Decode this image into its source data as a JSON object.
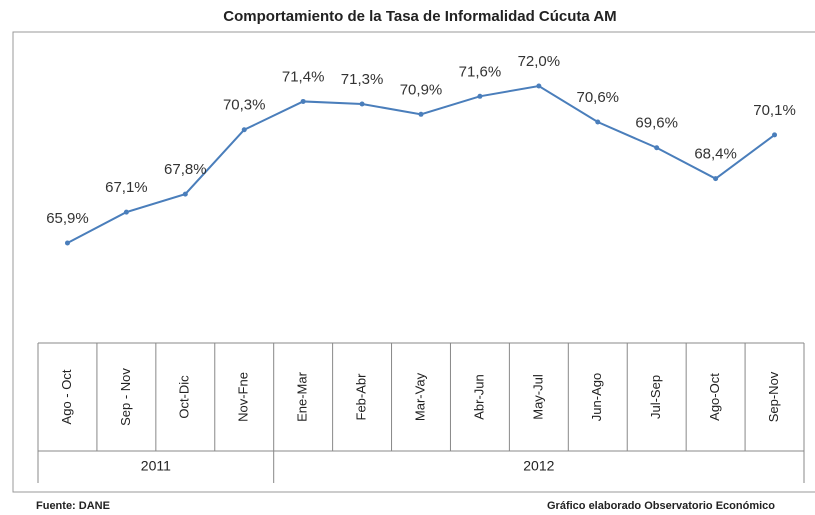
{
  "chart_data": {
    "type": "line",
    "title": "Comportamiento de la Tasa de Informalidad Cúcuta AM",
    "groups": [
      {
        "name": "2011",
        "categories": [
          "Ago - Oct",
          "Sep - Nov",
          "Oct-Dic",
          "Nov-Fne"
        ]
      },
      {
        "name": "2012",
        "categories": [
          "Ene-Mar",
          "Feb-Abr",
          "Mar-Vay",
          "Abr-Jun",
          "May-Jul",
          "Jun-Ago",
          "Jul-Sep",
          "Ago-Oct",
          "Sep-Nov"
        ]
      }
    ],
    "series": [
      {
        "color": "#4a7ebb",
        "values": [
          65.9,
          67.1,
          67.8,
          70.3,
          71.4,
          71.3,
          70.9,
          71.6,
          72.0,
          70.6,
          69.6,
          68.4,
          70.1
        ],
        "value_labels": [
          "65,9%",
          "67,1%",
          "67,8%",
          "70,3%",
          "71,4%",
          "71,3%",
          "70,9%",
          "71,6%",
          "72,0%",
          "70,6%",
          "69,6%",
          "68,4%",
          "70,1%"
        ]
      }
    ],
    "source": "Fuente: DANE",
    "credit": "Gráfico elaborado Observatorio Económico"
  }
}
